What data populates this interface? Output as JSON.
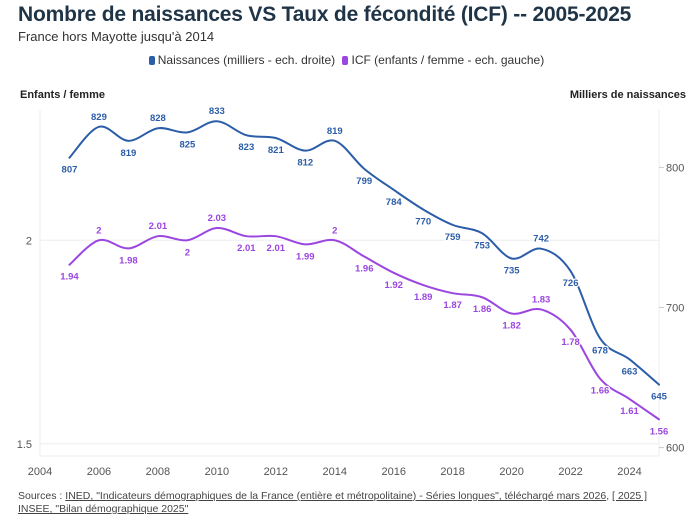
{
  "header": {
    "title": "Nombre de naissances VS Taux de fécondité (ICF) -- 2005-2025",
    "subtitle": "France hors Mayotte jusqu'à 2014"
  },
  "legend": [
    {
      "label": "Naissances (milliers - ech. droite)",
      "color": "#2c5da8"
    },
    {
      "label": "ICF (enfants / femme - ech. gauche)",
      "color": "#9b46e0"
    }
  ],
  "axis_titles": {
    "left": "Enfants / femme",
    "right": "Milliers de naissances"
  },
  "source": {
    "prefix": "Sources : ",
    "link1": "INED, \"Indicateurs démographiques de la France (entière et métropolitaine) - Séries longues\", téléchargé mars 2026",
    "sep": ", ",
    "link2": "[ 2025 ] INSEE, \"Bilan démographique 2025\""
  },
  "chart_data": {
    "type": "line",
    "title": "Nombre de naissances VS Taux de fécondité (ICF) -- 2005-2025",
    "subtitle": "France hors Mayotte jusqu'à 2014",
    "x": [
      2005,
      2006,
      2007,
      2008,
      2009,
      2010,
      2011,
      2012,
      2013,
      2014,
      2015,
      2016,
      2017,
      2018,
      2019,
      2020,
      2021,
      2022,
      2023,
      2024,
      2025
    ],
    "xlim": [
      2004,
      2025
    ],
    "xticks": [
      2004,
      2006,
      2008,
      2010,
      2012,
      2014,
      2016,
      2018,
      2020,
      2022,
      2024
    ],
    "series": [
      {
        "name": "Naissances (milliers - ech. droite)",
        "axis": "right",
        "color": "#2c5da8",
        "values": [
          807,
          829,
          819,
          828,
          825,
          833,
          823,
          821,
          812,
          819,
          799,
          784,
          770,
          759,
          753,
          735,
          742,
          726,
          678,
          663,
          645
        ]
      },
      {
        "name": "ICF (enfants / femme - ech. gauche)",
        "axis": "left",
        "color": "#9b46e0",
        "values": [
          1.94,
          2,
          1.98,
          2.01,
          2,
          2.03,
          2.01,
          2.01,
          1.99,
          2,
          1.96,
          1.92,
          1.89,
          1.87,
          1.86,
          1.82,
          1.83,
          1.78,
          1.66,
          1.61,
          1.56
        ]
      }
    ],
    "y_left": {
      "label": "Enfants / femme",
      "ticks": [
        1.5,
        2
      ],
      "range": [
        1.47,
        2.32
      ]
    },
    "y_right": {
      "label": "Milliers de naissances",
      "ticks": [
        600,
        700,
        800
      ],
      "range": [
        594,
        841
      ]
    },
    "grid": true,
    "legend_position": "top-center"
  }
}
